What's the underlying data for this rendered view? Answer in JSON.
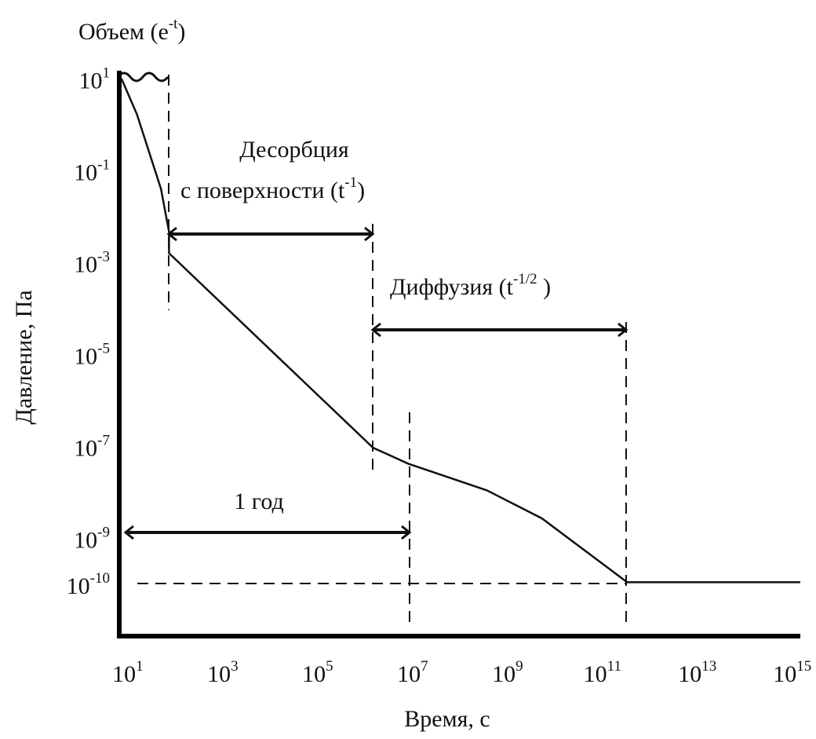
{
  "chart_data": {
    "type": "line",
    "color": "#111111",
    "log_x": true,
    "log_y": true,
    "x_label": "Время, с",
    "y_label": "Давление, Па",
    "xlim": [
      8,
      2000000000000000.0
    ],
    "ylim": [
      8e-12,
      15
    ],
    "xticks": [
      {
        "value": 10,
        "label": "10",
        "sup": "1"
      },
      {
        "value": 1000,
        "label": "10",
        "sup": "3"
      },
      {
        "value": 100000,
        "label": "10",
        "sup": "5"
      },
      {
        "value": 10000000.0,
        "label": "10",
        "sup": "7"
      },
      {
        "value": 1000000000.0,
        "label": "10",
        "sup": "9"
      },
      {
        "value": 100000000000.0,
        "label": "10",
        "sup": "11"
      },
      {
        "value": 10000000000000.0,
        "label": "10",
        "sup": "13"
      },
      {
        "value": 1000000000000000.0,
        "label": "10",
        "sup": "15"
      }
    ],
    "yticks": [
      {
        "value": 10,
        "label": "10",
        "sup": "1"
      },
      {
        "value": 0.1,
        "label": "10",
        "sup": "-1"
      },
      {
        "value": 0.001,
        "label": "10",
        "sup": "-3"
      },
      {
        "value": 1e-05,
        "label": "10",
        "sup": "-5"
      },
      {
        "value": 1e-07,
        "label": "10",
        "sup": "-7"
      },
      {
        "value": 1e-09,
        "label": "10",
        "sup": "-9"
      },
      {
        "value": 1e-10,
        "label": "10",
        "sup": "-10"
      }
    ],
    "x": [
      10,
      21,
      68,
      100,
      100,
      2000000.0,
      11000000.0,
      500000000.0,
      7200000000.0,
      450000000000.0,
      2000000000000000.0
    ],
    "values": [
      10,
      1.7,
      0.04,
      0.0047,
      0.0016,
      9.3e-08,
      4.2e-08,
      1.1e-08,
      2.7e-09,
      1.1e-10,
      1.1e-10
    ],
    "annotations": {
      "volume": {
        "text": "Объем (e",
        "sup": "-t",
        "after": ")"
      },
      "desorption": {
        "line1": "Десорбция",
        "text": "с поверхности (t",
        "sup": "-1",
        "after": ")"
      },
      "diffusion": {
        "text": "Диффузия (t",
        "sup": "-1/2",
        "after": " )"
      },
      "year": {
        "text": "1 год"
      }
    }
  }
}
